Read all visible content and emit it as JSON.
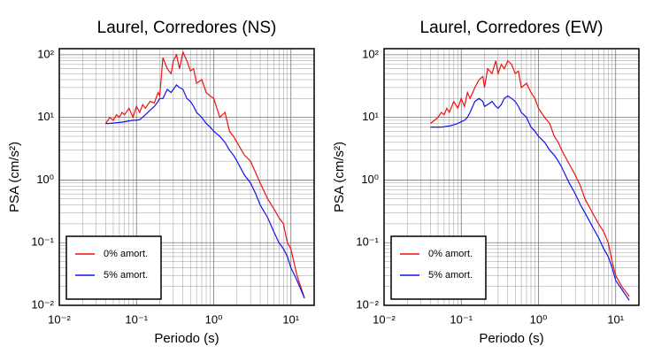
{
  "chart_data": [
    {
      "type": "line",
      "title": "Laurel, Corredores (NS)",
      "x_label": "Periodo (s)",
      "y_label": "PSA (cm/s²)",
      "log_x": true,
      "log_y": true,
      "grid": true,
      "legend": "lower left",
      "xlim": [
        0.01,
        20
      ],
      "ylim": [
        0.01,
        125
      ],
      "xticks": [
        {
          "value": 0.01,
          "label": "10⁻²"
        },
        {
          "value": 0.1,
          "label": "10⁻¹"
        },
        {
          "value": 1,
          "label": "10⁰"
        },
        {
          "value": 10,
          "label": "10¹"
        }
      ],
      "yticks": [
        {
          "value": 0.01,
          "label": "10⁻²"
        },
        {
          "value": 0.1,
          "label": "10⁻¹"
        },
        {
          "value": 1,
          "label": "10⁰"
        },
        {
          "value": 10,
          "label": "10¹"
        },
        {
          "value": 100,
          "label": "10²"
        }
      ],
      "x": [
        0.04,
        0.045,
        0.05,
        0.055,
        0.06,
        0.065,
        0.07,
        0.08,
        0.09,
        0.1,
        0.11,
        0.12,
        0.13,
        0.15,
        0.17,
        0.19,
        0.2,
        0.22,
        0.25,
        0.28,
        0.3,
        0.33,
        0.36,
        0.4,
        0.45,
        0.5,
        0.55,
        0.6,
        0.7,
        0.8,
        0.9,
        1,
        1.2,
        1.4,
        1.6,
        1.8,
        2,
        2.5,
        3,
        3.5,
        4,
        5,
        6,
        7,
        8,
        9,
        10,
        12,
        15
      ],
      "series": [
        {
          "name": "0% amort.",
          "color": "#ee1111",
          "values": [
            8,
            10,
            9,
            11,
            10,
            12,
            11,
            14,
            10,
            15,
            12,
            16,
            14,
            18,
            17,
            25,
            22,
            90,
            60,
            50,
            80,
            100,
            60,
            110,
            80,
            55,
            60,
            35,
            40,
            25,
            22,
            20,
            10,
            12,
            6,
            5,
            4,
            2.5,
            2,
            1.3,
            0.9,
            0.5,
            0.35,
            0.25,
            0.2,
            0.1,
            0.08,
            0.03,
            0.013
          ]
        },
        {
          "name": "5% amort.",
          "color": "#1111ee",
          "values": [
            8,
            8,
            8.1,
            8.2,
            8.3,
            8.4,
            8.5,
            8.8,
            9,
            9,
            9.2,
            10,
            11,
            13,
            15,
            18,
            20,
            20,
            28,
            25,
            28,
            33,
            30,
            28,
            20,
            18,
            15,
            12,
            10,
            8,
            7,
            6,
            5,
            4,
            3,
            2.5,
            2,
            1.2,
            0.9,
            0.6,
            0.4,
            0.25,
            0.15,
            0.1,
            0.08,
            0.06,
            0.04,
            0.025,
            0.013
          ]
        }
      ]
    },
    {
      "type": "line",
      "title": "Laurel, Corredores (EW)",
      "x_label": "Periodo (s)",
      "y_label": "PSA (cm/s²)",
      "log_x": true,
      "log_y": true,
      "grid": true,
      "legend": "lower left",
      "xlim": [
        0.01,
        20
      ],
      "ylim": [
        0.01,
        125
      ],
      "xticks": [
        {
          "value": 0.01,
          "label": "10⁻²"
        },
        {
          "value": 0.1,
          "label": "10⁻¹"
        },
        {
          "value": 1,
          "label": "10⁰"
        },
        {
          "value": 10,
          "label": "10¹"
        }
      ],
      "yticks": [
        {
          "value": 0.01,
          "label": "10⁻²"
        },
        {
          "value": 0.1,
          "label": "10⁻¹"
        },
        {
          "value": 1,
          "label": "10⁰"
        },
        {
          "value": 10,
          "label": "10¹"
        },
        {
          "value": 100,
          "label": "10²"
        }
      ],
      "x": [
        0.04,
        0.045,
        0.05,
        0.055,
        0.06,
        0.065,
        0.07,
        0.08,
        0.09,
        0.1,
        0.11,
        0.12,
        0.13,
        0.15,
        0.17,
        0.19,
        0.2,
        0.22,
        0.25,
        0.28,
        0.3,
        0.33,
        0.36,
        0.4,
        0.45,
        0.5,
        0.55,
        0.6,
        0.7,
        0.8,
        0.9,
        1,
        1.2,
        1.4,
        1.6,
        1.8,
        2,
        2.5,
        3,
        3.5,
        4,
        5,
        6,
        7,
        8,
        9,
        10,
        12,
        15
      ],
      "series": [
        {
          "name": "0% amort.",
          "color": "#ee1111",
          "values": [
            8,
            9,
            10,
            12,
            11,
            14,
            12,
            18,
            14,
            20,
            15,
            25,
            20,
            30,
            40,
            45,
            30,
            60,
            50,
            80,
            50,
            70,
            60,
            80,
            70,
            50,
            55,
            30,
            35,
            25,
            20,
            14,
            10,
            8,
            5,
            4,
            3,
            1.8,
            1.2,
            0.8,
            0.5,
            0.3,
            0.2,
            0.15,
            0.1,
            0.05,
            0.03,
            0.02,
            0.014
          ]
        },
        {
          "name": "5% amort.",
          "color": "#1111ee",
          "values": [
            7,
            7,
            7,
            7,
            7.1,
            7.2,
            7.3,
            7.6,
            8,
            8.5,
            9,
            10,
            12,
            18,
            20,
            18,
            15,
            16,
            18,
            15,
            14,
            16,
            20,
            22,
            20,
            18,
            15,
            12,
            10,
            7,
            6,
            5,
            4,
            3,
            2.5,
            2,
            1.6,
            0.9,
            0.6,
            0.4,
            0.3,
            0.18,
            0.12,
            0.08,
            0.06,
            0.04,
            0.025,
            0.018,
            0.012
          ]
        }
      ]
    }
  ]
}
